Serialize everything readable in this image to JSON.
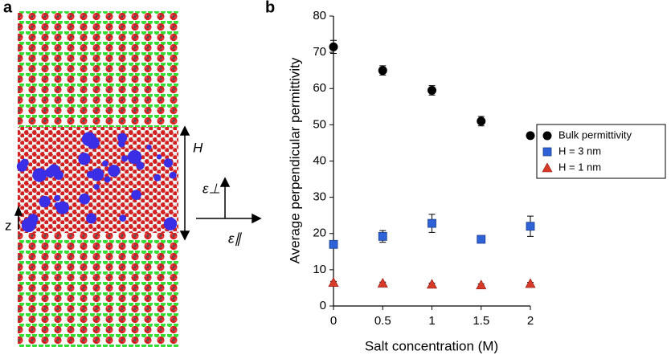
{
  "panel_a": {
    "label": "a",
    "height_label": "H",
    "z_label": "z",
    "perp_label": "ε⊥",
    "par_label": "ε∥"
  },
  "chart_data": {
    "type": "scatter",
    "panel_label": "b",
    "x_label": "Salt concentration (M)",
    "y_label": "Average perpendicular permittivity",
    "x": [
      0,
      0.5,
      1,
      1.5,
      2
    ],
    "xlim": [
      0,
      2
    ],
    "xticks": [
      0,
      0.5,
      1,
      1.5,
      2
    ],
    "ylim": [
      0,
      80
    ],
    "yticks": [
      0,
      10,
      20,
      30,
      40,
      50,
      60,
      70,
      80
    ],
    "legend": "right",
    "series": [
      {
        "name": "Bulk permittivity",
        "color": "#000000",
        "marker": "circle",
        "values": [
          71.5,
          65,
          59.5,
          51,
          47
        ],
        "errors": [
          1.8,
          1.3,
          1.3,
          1.3,
          0.5
        ]
      },
      {
        "name": "H = 3 nm",
        "color": "#2e62d6",
        "marker": "square",
        "values": [
          17,
          19.2,
          22.8,
          18.4,
          22
        ],
        "errors": [
          0.5,
          1.6,
          2.5,
          0.6,
          2.8
        ]
      },
      {
        "name": "H = 1 nm",
        "color": "#d83a2a",
        "marker": "triangle",
        "values": [
          6.5,
          6.3,
          6.0,
          5.8,
          6.2
        ],
        "errors": [
          0.3,
          0.3,
          0.3,
          0.3,
          0.3
        ]
      }
    ]
  }
}
